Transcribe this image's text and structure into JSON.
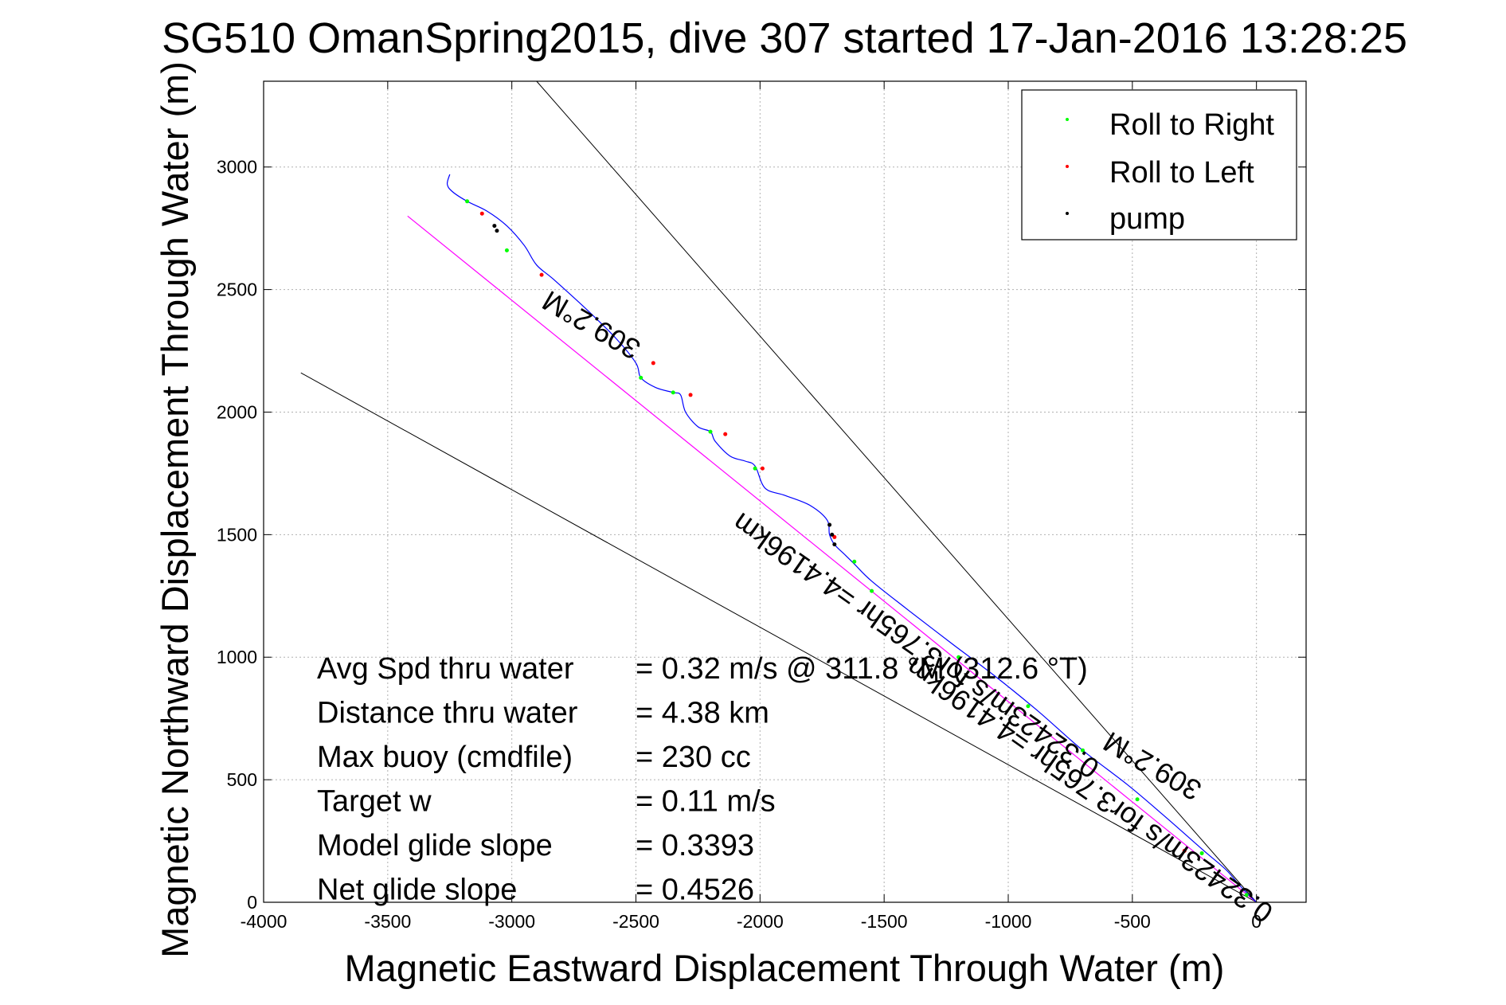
{
  "chart_data": {
    "type": "line",
    "title": "SG510 OmanSpring2015, dive 307 started 17-Jan-2016 13:28:25",
    "xlabel": "Magnetic Eastward Displacement Through Water (m)",
    "ylabel": "Magnetic Northward Displacement Through Water (m)",
    "xlim": [
      -4000,
      200
    ],
    "ylim": [
      0,
      3350
    ],
    "x_ticks": [
      -4000,
      -3500,
      -3000,
      -2500,
      -2000,
      -1500,
      -1000,
      -500,
      0
    ],
    "y_ticks": [
      0,
      500,
      1000,
      1500,
      2000,
      2500,
      3000
    ],
    "grid": true,
    "legend_position": "top-right",
    "legend": [
      {
        "label": "Roll to Right",
        "color": "#00ff00"
      },
      {
        "label": "Roll to Left",
        "color": "#ff0000"
      },
      {
        "label": "pump",
        "color": "#000000"
      }
    ],
    "track": {
      "color": "#0000ff",
      "x": [
        0,
        -60,
        -120,
        -200,
        -290,
        -380,
        -520,
        -700,
        -880,
        -1050,
        -1220,
        -1400,
        -1550,
        -1620,
        -1660,
        -1700,
        -1720,
        -1730,
        -1800,
        -1900,
        -1980,
        -2020,
        -2060,
        -2120,
        -2180,
        -2200,
        -2250,
        -2300,
        -2320,
        -2350,
        -2420,
        -2480,
        -2500,
        -2580,
        -2700,
        -2830,
        -2900,
        -2950,
        -3020,
        -3100,
        -3180,
        -3240,
        -3260,
        -3250
      ],
      "y": [
        0,
        60,
        130,
        200,
        280,
        360,
        480,
        620,
        780,
        920,
        1050,
        1190,
        1310,
        1380,
        1420,
        1460,
        1500,
        1560,
        1620,
        1660,
        1690,
        1780,
        1800,
        1820,
        1880,
        1920,
        1940,
        2000,
        2070,
        2080,
        2100,
        2140,
        2200,
        2300,
        2420,
        2540,
        2600,
        2680,
        2760,
        2820,
        2860,
        2900,
        2930,
        2970
      ]
    },
    "reference_line": {
      "color": "#ff00ff",
      "x": [
        0,
        -3420
      ],
      "y": [
        0,
        2800
      ]
    },
    "bound_lines": [
      {
        "color": "#000000",
        "x": [
          0,
          -2900
        ],
        "y": [
          0,
          3350
        ]
      },
      {
        "color": "#000000",
        "x": [
          0,
          -3850
        ],
        "y": [
          0,
          2160
        ]
      }
    ],
    "markers": {
      "roll_right": {
        "color": "#00ff00",
        "x": [
          -40,
          -220,
          -480,
          -700,
          -920,
          -1200,
          -1550,
          -1620,
          -2020,
          -2200,
          -2350,
          -2480,
          -3020,
          -3180
        ],
        "y": [
          30,
          200,
          420,
          620,
          800,
          1000,
          1270,
          1390,
          1770,
          1920,
          2080,
          2140,
          2660,
          2860
        ]
      },
      "roll_left": {
        "color": "#ff0000",
        "x": [
          -290,
          -1700,
          -1990,
          -2140,
          -2280,
          -2430,
          -2880,
          -3120
        ],
        "y": [
          210,
          1490,
          1770,
          1910,
          2070,
          2200,
          2560,
          2810
        ]
      },
      "pump": {
        "color": "#000000",
        "x": [
          -1700,
          -1710,
          -1720,
          -3060,
          -3070
        ],
        "y": [
          1460,
          1500,
          1540,
          2740,
          2760
        ]
      }
    },
    "annotations": [
      {
        "text": "309.2°M",
        "x": -2660,
        "y": 2390,
        "rotation": 30
      },
      {
        "text": "0.32423m/s for3.765hr =4.4196km",
        "x": -1350,
        "y": 1080,
        "rotation": 35
      },
      {
        "text": "0.32423m/s for3.765hr =4.4196km",
        "x": -650,
        "y": 490,
        "rotation": 35
      },
      {
        "text": "309.2°M",
        "x": -400,
        "y": 590,
        "rotation": 30
      }
    ],
    "stats": [
      {
        "label": "Avg Spd thru water",
        "value": "=  0.32 m/s @ 311.8 °M (312.6 °T)"
      },
      {
        "label": "Distance thru water",
        "value": "=  4.38 km"
      },
      {
        "label": "Max buoy (cmdfile)",
        "value": "= 230 cc"
      },
      {
        "label": "Target w",
        "value": "= 0.11 m/s"
      },
      {
        "label": "Model glide slope",
        "value": "= 0.3393"
      },
      {
        "label": "Net glide slope",
        "value": "= 0.4526"
      }
    ]
  }
}
